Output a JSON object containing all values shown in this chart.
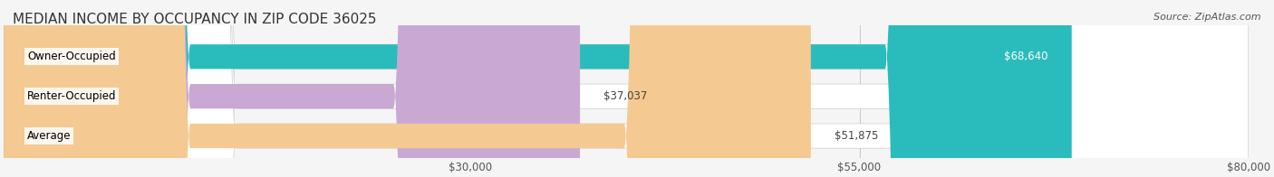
{
  "title": "MEDIAN INCOME BY OCCUPANCY IN ZIP CODE 36025",
  "source": "Source: ZipAtlas.com",
  "categories": [
    "Owner-Occupied",
    "Renter-Occupied",
    "Average"
  ],
  "values": [
    68640,
    37037,
    51875
  ],
  "value_labels": [
    "$68,640",
    "$37,037",
    "$51,875"
  ],
  "bar_colors": [
    "#2ABCBC",
    "#C9A8D4",
    "#F5C992"
  ],
  "bar_edge_colors": [
    "#2ABCBC",
    "#C9A8D4",
    "#F5C992"
  ],
  "xlim": [
    0,
    80000
  ],
  "xticks": [
    30000,
    55000,
    80000
  ],
  "xtick_labels": [
    "$30,000",
    "$55,000",
    "$80,000"
  ],
  "background_color": "#f5f5f5",
  "bar_bg_color": "#e8e8e8",
  "title_fontsize": 11,
  "source_fontsize": 8,
  "label_fontsize": 8.5,
  "value_fontsize": 8.5,
  "tick_fontsize": 8.5
}
